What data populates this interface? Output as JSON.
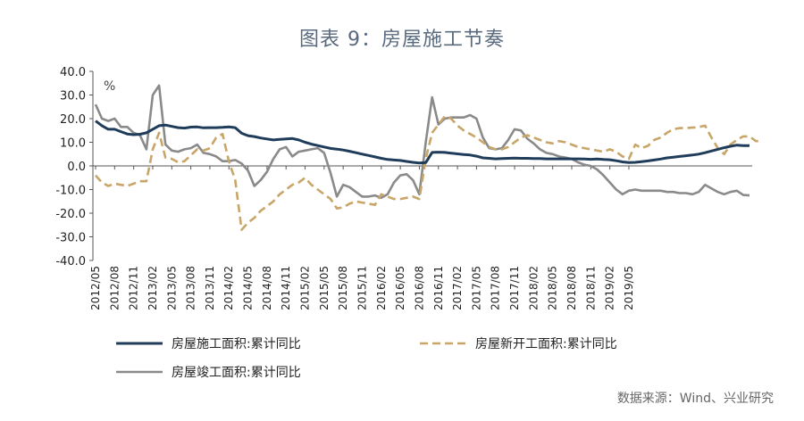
{
  "title": "图表 9：房屋施工节奏",
  "source": "数据来源：Wind、兴业研究",
  "chart_data": {
    "type": "line",
    "unit": "%",
    "ylim": [
      -40,
      40
    ],
    "yticks": [
      40,
      30,
      20,
      10,
      0,
      -10,
      -20,
      -30,
      -40
    ],
    "ytick_labels": [
      "40.0",
      "30.0",
      "20.0",
      "10.0",
      "0.0",
      "-10.0",
      "-20.0",
      "-30.0",
      "-40.0"
    ],
    "x_labels": [
      "2012/05",
      "2012/08",
      "2012/11",
      "2013/02",
      "2013/05",
      "2013/08",
      "2013/11",
      "2014/02",
      "2014/05",
      "2014/08",
      "2014/11",
      "2015/02",
      "2015/05",
      "2015/08",
      "2015/11",
      "2016/02",
      "2016/05",
      "2016/08",
      "2016/11",
      "2017/02",
      "2017/05",
      "2017/08",
      "2017/11",
      "2018/02",
      "2018/05",
      "2018/08",
      "2018/11",
      "2019/02",
      "2019/05"
    ],
    "start": "2012/05",
    "end": "2019/06",
    "series": [
      {
        "name": "房屋施工面积:累计同比",
        "color": "#1f3d5a",
        "style": "solid",
        "values": [
          19,
          17,
          15.5,
          15.5,
          14.5,
          13.5,
          13.2,
          13.4,
          14,
          15.5,
          17,
          17.3,
          16.7,
          16.2,
          16,
          16.4,
          16.5,
          16.1,
          16.2,
          16.2,
          16.3,
          16.5,
          16.2,
          13.8,
          12.8,
          12.4,
          11.8,
          11.4,
          11,
          11.2,
          11.4,
          11.6,
          11,
          10,
          9.2,
          8.6,
          8,
          7.4,
          7.1,
          6.7,
          6.2,
          5.6,
          5,
          4.4,
          3.8,
          3.2,
          2.7,
          2.5,
          2.3,
          1.9,
          1.5,
          1.2,
          1.4,
          5.7,
          5.8,
          5.7,
          5.4,
          5.1,
          4.8,
          4.6,
          4.1,
          3.4,
          3.2,
          3,
          3.1,
          3.2,
          3.3,
          3.2,
          3.2,
          3.1,
          3.1,
          3,
          3,
          3,
          3,
          3,
          3,
          2.9,
          2.8,
          2.9,
          2.7,
          2.6,
          2.2,
          1.7,
          1.4,
          1.5,
          1.8,
          2.1,
          2.5,
          2.9,
          3.4,
          3.7,
          4,
          4.3,
          4.6,
          5,
          5.6,
          6.3,
          7,
          7.7,
          8.3,
          8.8,
          8.6,
          8.6
        ]
      },
      {
        "name": "房屋新开工面积:累计同比",
        "color": "#c8a66a",
        "style": "dashed",
        "values": [
          -4,
          -7,
          -8.5,
          -7.5,
          -8,
          -8.5,
          -7.5,
          -6.5,
          -6.5,
          7,
          14,
          3.5,
          3,
          1.5,
          2,
          4.5,
          7,
          6.5,
          7.5,
          12,
          13.5,
          2,
          -6,
          -27,
          -24,
          -22,
          -19,
          -17,
          -15,
          -12,
          -10,
          -8,
          -7,
          -5,
          -8,
          -10,
          -12,
          -14,
          -18,
          -17.5,
          -16,
          -15,
          -15.5,
          -16,
          -16.5,
          -12,
          -13,
          -14,
          -14,
          -13.5,
          -13,
          -14,
          3,
          14,
          17.5,
          21,
          20,
          17,
          15,
          13.5,
          12,
          10,
          8,
          7,
          7,
          8,
          10,
          12,
          13,
          12,
          11,
          10,
          9.5,
          10.5,
          10,
          9,
          8,
          7.5,
          7,
          6.5,
          6,
          7,
          6,
          4,
          3,
          9,
          7.5,
          8.5,
          11,
          12,
          14,
          15.5,
          16,
          16,
          16.2,
          16.4,
          17,
          12,
          7.5,
          5,
          9,
          11,
          12.5,
          12.5,
          10.5,
          10.5
        ]
      },
      {
        "name": "房屋竣工面积:累计同比",
        "color": "#8a8a8a",
        "style": "solid",
        "values": [
          26,
          20,
          19,
          20,
          16.5,
          16.5,
          14,
          13,
          7,
          30,
          34,
          9,
          6.5,
          6,
          7,
          7.5,
          9,
          5.5,
          5,
          4,
          2,
          2,
          2.5,
          1,
          -2,
          -8.5,
          -6,
          -2.5,
          3,
          7,
          8,
          4,
          6,
          6.5,
          7,
          7.5,
          5.5,
          -3,
          -13,
          -8,
          -9,
          -11,
          -13,
          -13,
          -12.5,
          -13.5,
          -12,
          -7,
          -4,
          -3.5,
          -6,
          -12,
          10,
          29,
          17.5,
          20,
          20.5,
          20.5,
          20.5,
          21.5,
          20,
          12,
          7.5,
          7,
          7.5,
          11,
          15.5,
          15,
          11.5,
          9.5,
          7,
          5.5,
          5,
          4,
          3.5,
          3,
          1.5,
          0.5,
          0,
          -1.5,
          -4,
          -7,
          -10,
          -12,
          -10.5,
          -10,
          -10.5,
          -10.5,
          -10.5,
          -10.5,
          -11,
          -11,
          -11.5,
          -11.5,
          -12,
          -11,
          -8,
          -9.5,
          -11,
          -12,
          -11,
          -10.5,
          -12.3,
          -12.5
        ]
      }
    ]
  }
}
